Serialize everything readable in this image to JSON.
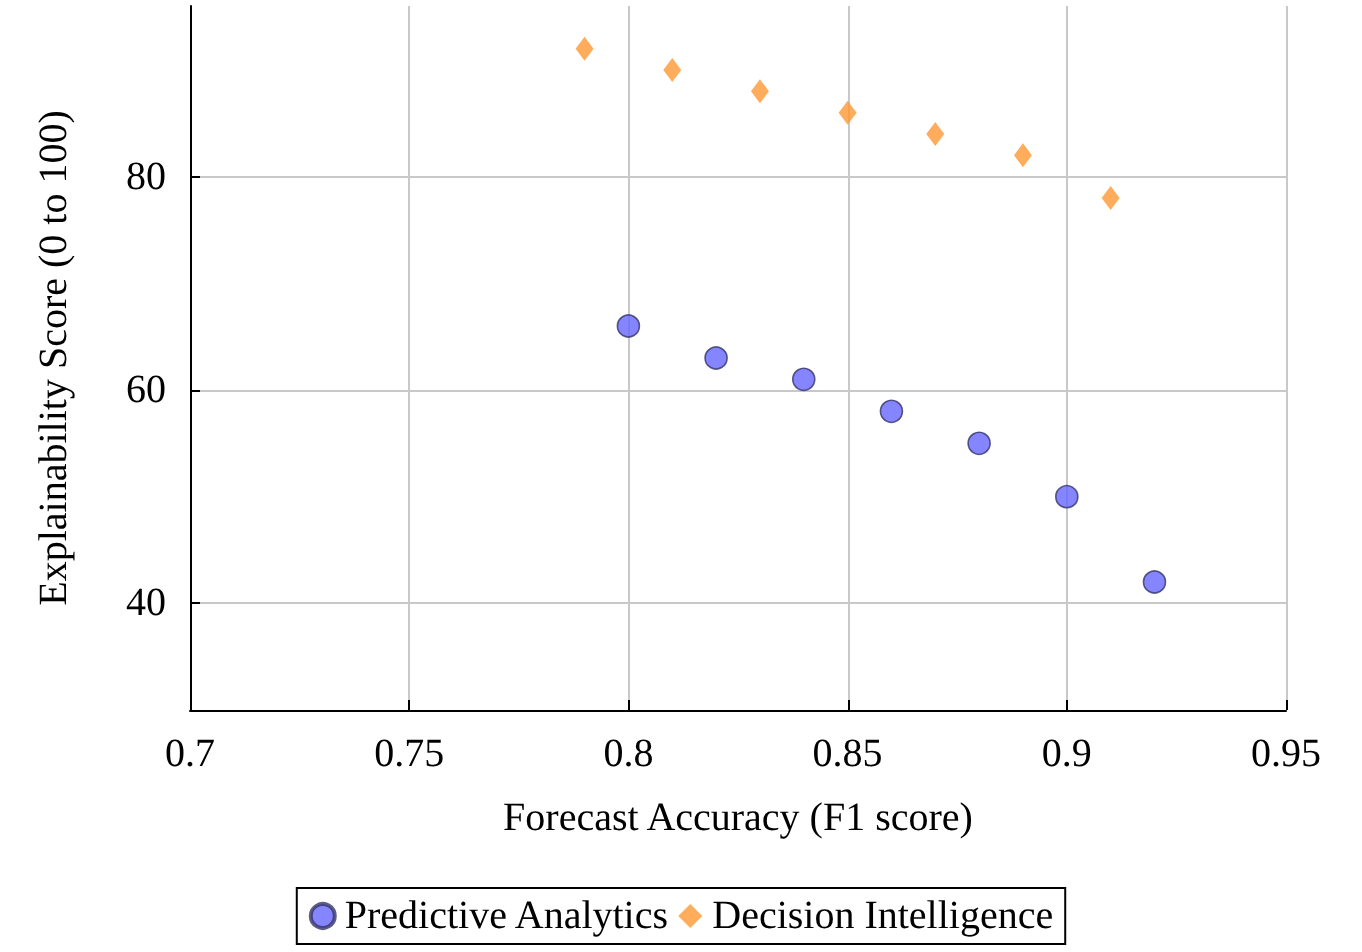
{
  "chart_data": {
    "type": "scatter",
    "xlabel": "Forecast Accuracy (F1 score)",
    "ylabel": "Explainability Score (0 to 100)",
    "xlim": [
      0.7,
      0.95
    ],
    "xticks": [
      0.7,
      0.75,
      0.8,
      0.85,
      0.9,
      0.95
    ],
    "ylim": [
      30,
      96
    ],
    "yticks": [
      40,
      60,
      80
    ],
    "grid": true,
    "legend": "bottom",
    "series": [
      {
        "name": "Predictive Analytics",
        "color": "#6666ff",
        "marker": "circle",
        "x": [
          0.8,
          0.82,
          0.84,
          0.86,
          0.88,
          0.9,
          0.92
        ],
        "values": [
          66,
          63,
          61,
          58,
          55,
          50,
          42
        ]
      },
      {
        "name": "Decision Intelligence",
        "color": "#ff9933",
        "marker": "diamond",
        "x": [
          0.79,
          0.81,
          0.83,
          0.85,
          0.87,
          0.89,
          0.91
        ],
        "values": [
          92,
          90,
          88,
          86,
          84,
          82,
          78
        ]
      }
    ]
  }
}
